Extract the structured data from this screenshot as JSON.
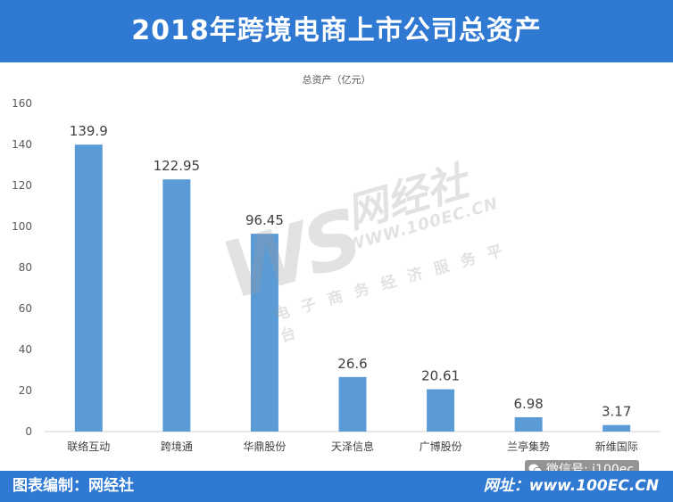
{
  "header": {
    "title": "2018年跨境电商上市公司总资产"
  },
  "footer": {
    "credit": "图表编制：网经社",
    "website": "网址：www.100EC.CN",
    "wechat": "微信号: i100ec"
  },
  "watermark": {
    "mark": "WS",
    "name": "网经社",
    "url": "WWW.100EC.CN",
    "slogan": "电子商务经济服务平台"
  },
  "colors": {
    "band": "#2f79d2",
    "bar": "#5b9bd5"
  },
  "chart_data": {
    "type": "bar",
    "title": "2018年跨境电商上市公司总资产",
    "legend_label": "总资产（亿元）",
    "categories": [
      "联络互动",
      "跨境通",
      "华鼎股份",
      "天泽信息",
      "广博股份",
      "兰亭集势",
      "新维国际"
    ],
    "values": [
      139.9,
      122.95,
      96.45,
      26.6,
      20.61,
      6.98,
      3.17
    ],
    "value_labels": [
      "139.9",
      "122.95",
      "96.45",
      "26.6",
      "20.61",
      "6.98",
      "3.17"
    ],
    "yticks": [
      0,
      20,
      40,
      60,
      80,
      100,
      120,
      140,
      160
    ],
    "ylim": [
      0,
      160
    ],
    "xlabel": "",
    "ylabel": "",
    "grid": false,
    "legend_position": "top-center"
  }
}
